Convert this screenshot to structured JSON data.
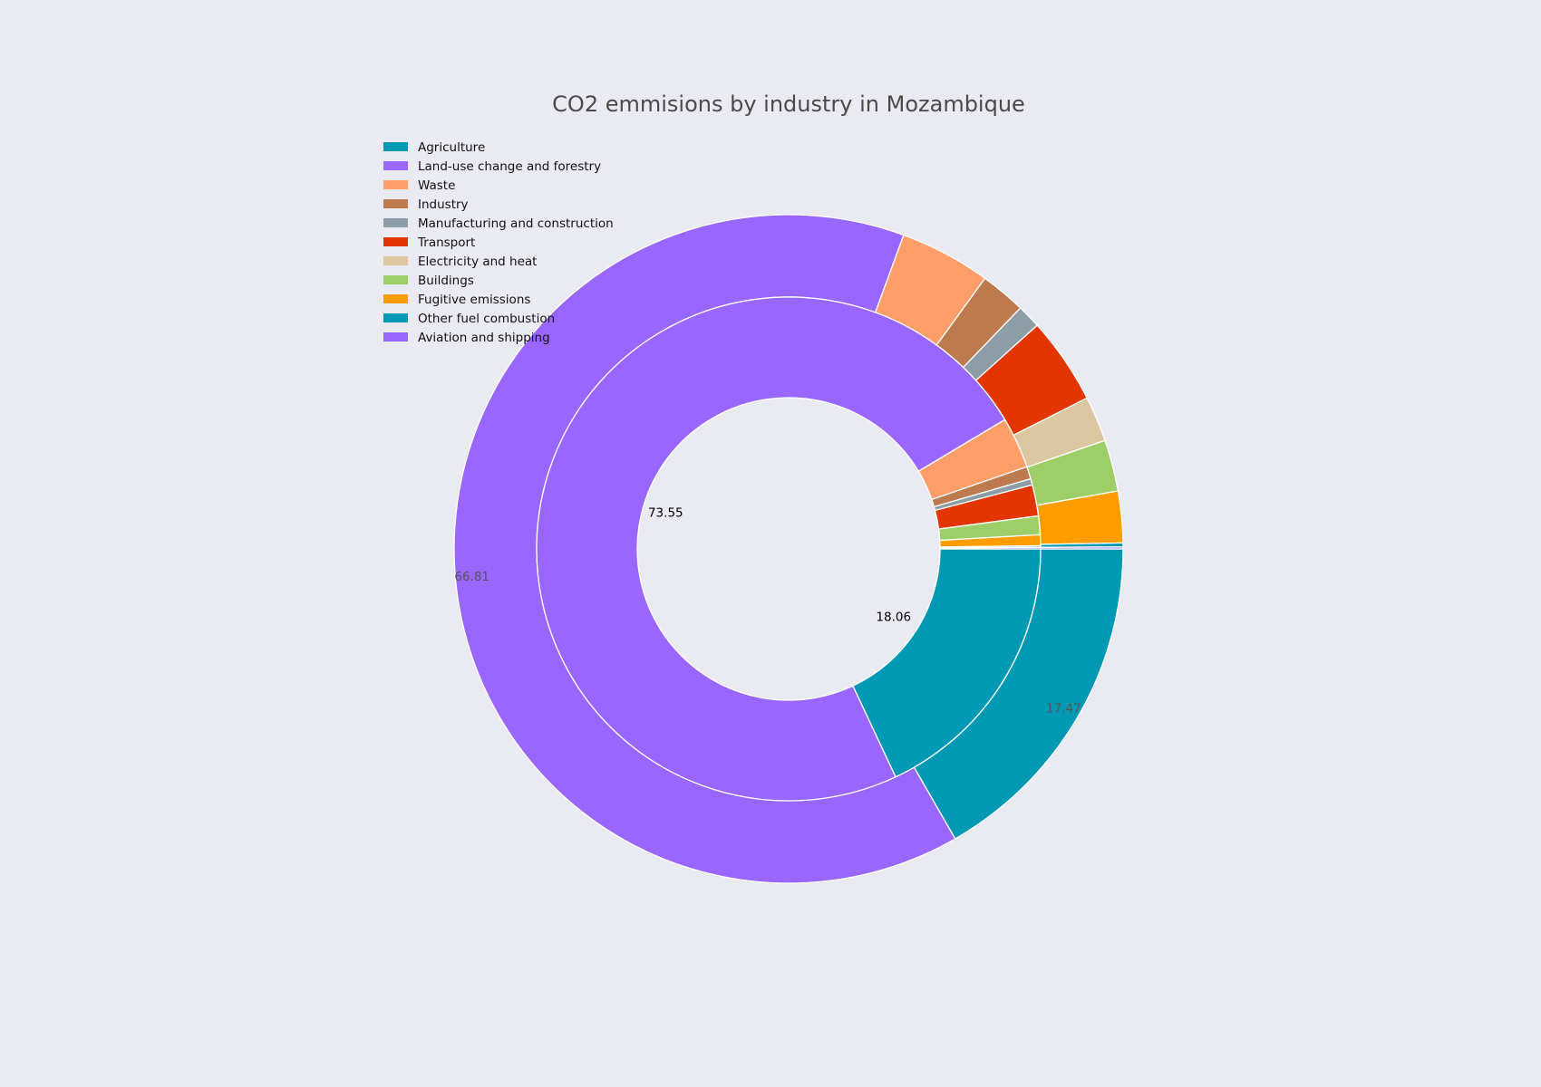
{
  "chart_data": {
    "type": "pie",
    "subtype": "nested-donut",
    "title": "CO2 emmisions by industry in Mozambique",
    "legend_placement": "top-left",
    "categories": [
      "Agriculture",
      "Land-use change and forestry",
      "Waste",
      "Industry",
      "Manufacturing and construction",
      "Transport",
      "Electricity and heat",
      "Buildings",
      "Fugitive emissions",
      "Other fuel combustion",
      "Aviation and shipping"
    ],
    "colors": [
      "#0099B4",
      "#9966FF",
      "#FF9E69",
      "#BD7A4E",
      "#8C9DA6",
      "#E33500",
      "#DDC7A1",
      "#9ECE67",
      "#FF9C00",
      "#0099B4",
      "#9966FF"
    ],
    "series": [
      {
        "ring": "inner",
        "values": [
          18.06,
          73.55,
          3.3,
          0.8,
          0.4,
          2.0,
          0.0,
          1.2,
          0.7,
          0.1,
          0.1
        ],
        "shown_labels": [
          "18.06",
          "73.55"
        ]
      },
      {
        "ring": "outer",
        "values": [
          17.47,
          66.81,
          4.6,
          2.3,
          1.2,
          4.4,
          2.3,
          2.6,
          2.6,
          0.2,
          0.1
        ],
        "shown_labels": [
          "17.47",
          "66.81"
        ]
      }
    ]
  }
}
